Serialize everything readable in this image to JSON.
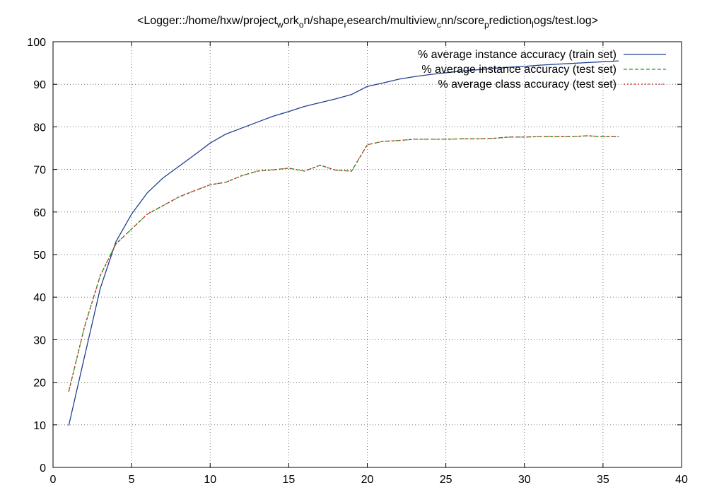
{
  "chart_data": {
    "type": "line",
    "title_parts": [
      {
        "t": "<Logger::/home/hxw/project",
        "sub": false
      },
      {
        "t": "w",
        "sub": true
      },
      {
        "t": "ork",
        "sub": false
      },
      {
        "t": "o",
        "sub": true
      },
      {
        "t": "n/shape",
        "sub": false
      },
      {
        "t": "r",
        "sub": true
      },
      {
        "t": "esearch/multiview",
        "sub": false
      },
      {
        "t": "c",
        "sub": true
      },
      {
        "t": "nn/score",
        "sub": false
      },
      {
        "t": "p",
        "sub": true
      },
      {
        "t": "rediction",
        "sub": false
      },
      {
        "t": "l",
        "sub": true
      },
      {
        "t": "ogs/test.log>",
        "sub": false
      }
    ],
    "xlim": [
      0,
      40
    ],
    "ylim": [
      0,
      100
    ],
    "xticks": [
      0,
      5,
      10,
      15,
      20,
      25,
      30,
      35,
      40
    ],
    "yticks": [
      0,
      10,
      20,
      30,
      40,
      50,
      60,
      70,
      80,
      90,
      100
    ],
    "grid": true,
    "legend_position": "top-right",
    "x": [
      1,
      2,
      3,
      4,
      5,
      6,
      7,
      8,
      9,
      10,
      11,
      12,
      13,
      14,
      15,
      16,
      17,
      18,
      19,
      20,
      21,
      22,
      23,
      24,
      25,
      26,
      27,
      28,
      29,
      30,
      31,
      32,
      33,
      34,
      35,
      36
    ],
    "series": [
      {
        "name": "% average instance accuracy (train set)",
        "color": "#1f3f8f",
        "dash": "solid",
        "values": [
          9.8,
          26,
          42,
          53,
          59.5,
          64.5,
          68,
          70.7,
          73.4,
          76.2,
          78.3,
          79.7,
          81.1,
          82.5,
          83.6,
          84.8,
          85.7,
          86.6,
          87.6,
          89.5,
          90.3,
          91.2,
          91.8,
          92.3,
          92.7,
          93.1,
          93.4,
          93.7,
          94.0,
          94.2,
          94.5,
          94.7,
          94.9,
          95.1,
          95.3,
          95.5
        ]
      },
      {
        "name": "% average instance accuracy (test set)",
        "color": "#1a9a1a",
        "dash": "dashed",
        "values": [
          17.8,
          33,
          45,
          52.5,
          56,
          59.5,
          61.5,
          63.5,
          65,
          66.4,
          67,
          68.5,
          69.6,
          69.9,
          70.3,
          69.6,
          71,
          69.8,
          69.6,
          75.8,
          76.6,
          76.8,
          77.1,
          77.1,
          77.1,
          77.2,
          77.2,
          77.3,
          77.6,
          77.6,
          77.7,
          77.7,
          77.7,
          77.9,
          77.7,
          77.7
        ]
      },
      {
        "name": "% average class accuracy (test set)",
        "color": "#d42020",
        "dash": "dotted",
        "values": [
          17.8,
          33,
          45,
          52.5,
          56,
          59.5,
          61.5,
          63.5,
          65,
          66.4,
          67,
          68.5,
          69.6,
          69.9,
          70.3,
          69.6,
          71,
          69.8,
          69.6,
          75.8,
          76.6,
          76.8,
          77.1,
          77.1,
          77.1,
          77.2,
          77.2,
          77.3,
          77.6,
          77.6,
          77.7,
          77.7,
          77.7,
          77.9,
          77.7,
          77.7
        ]
      }
    ]
  }
}
